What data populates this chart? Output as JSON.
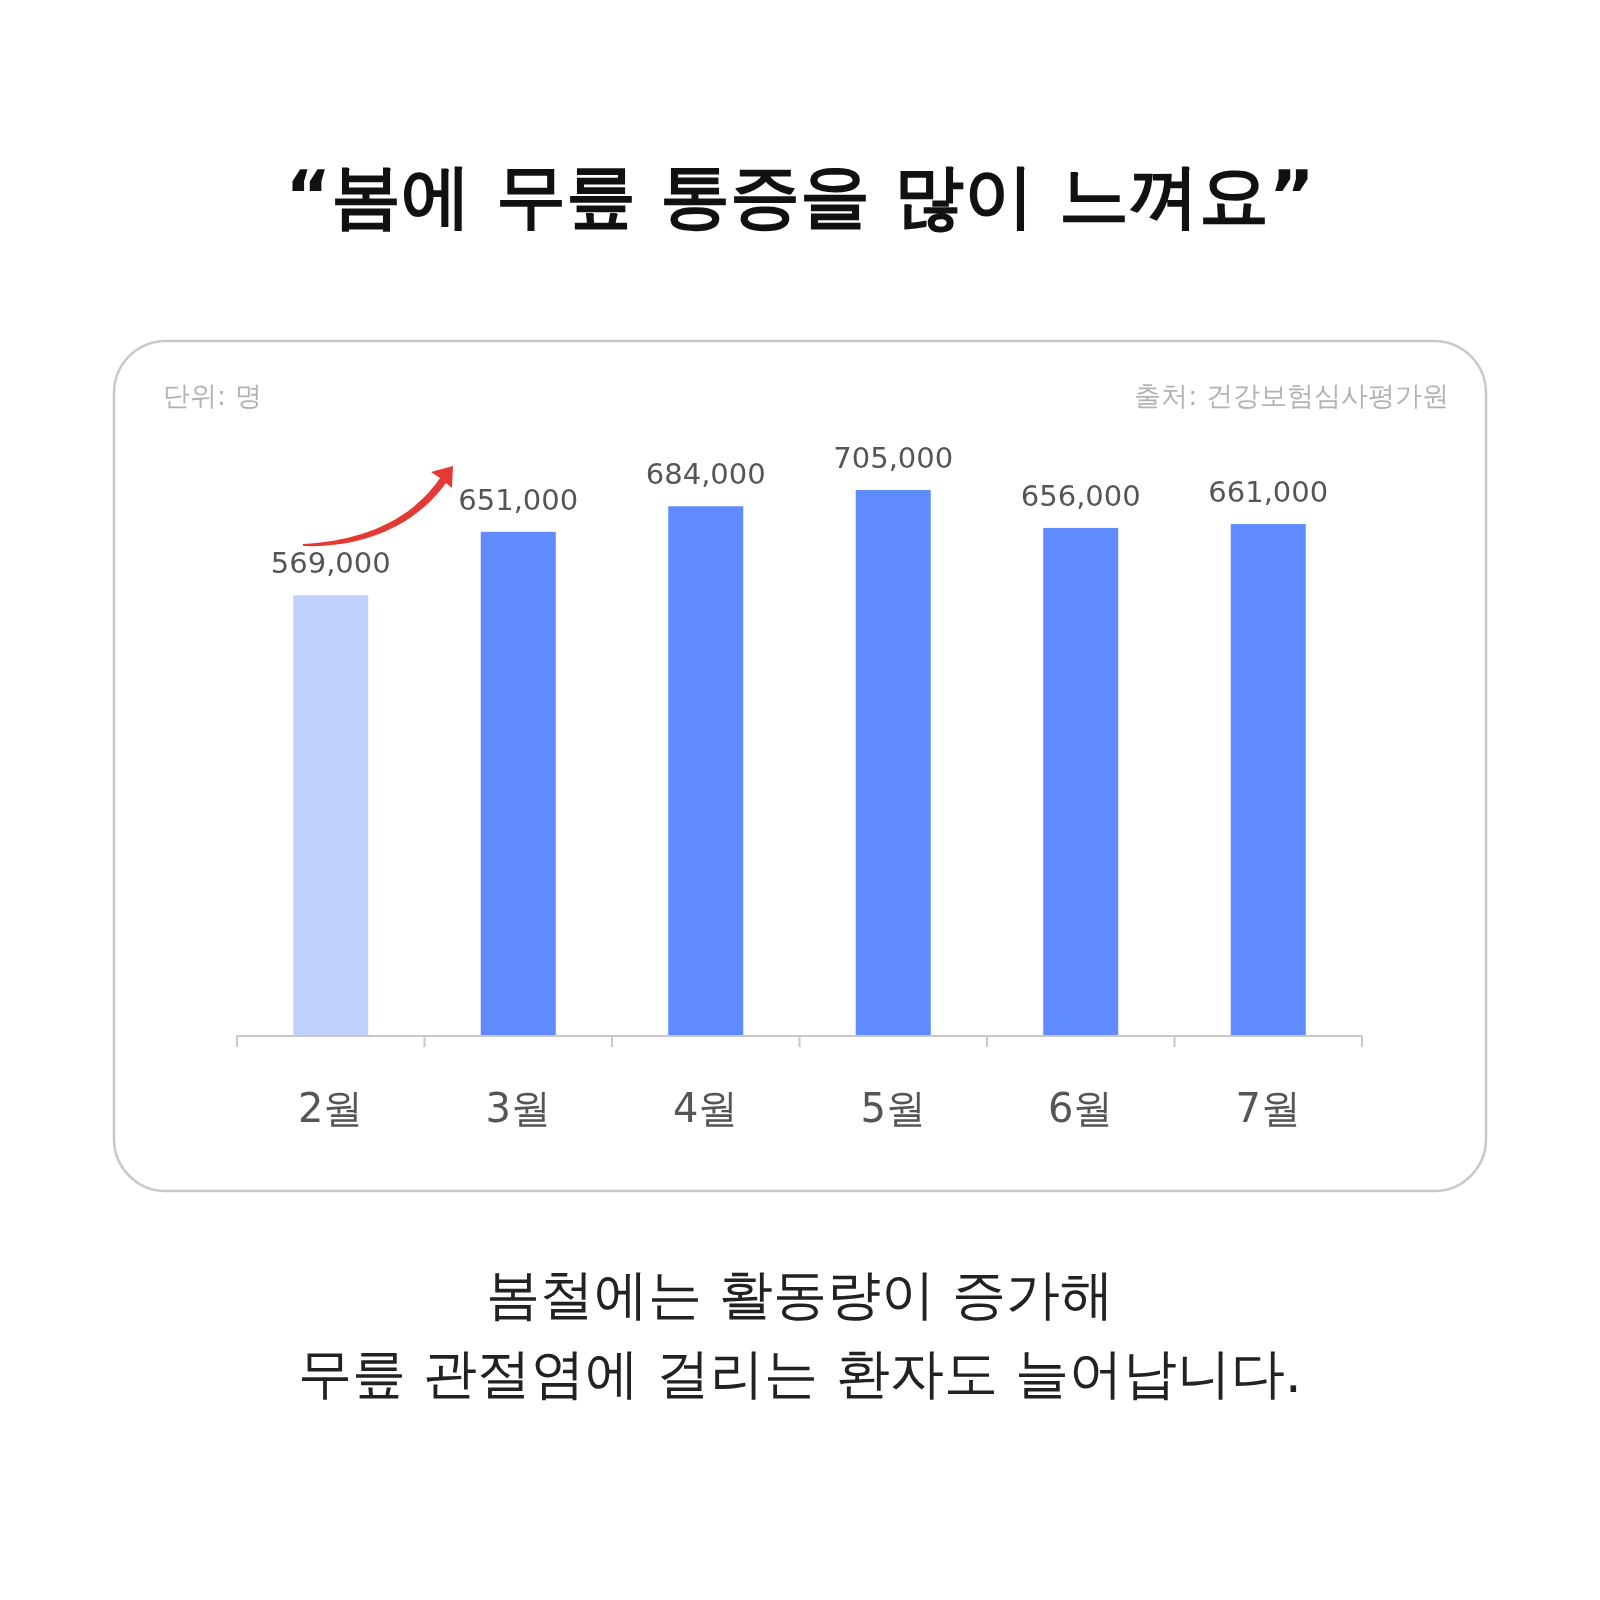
{
  "chart_data": {
    "type": "bar",
    "title": "“봄에 무릎 통증을 많이 느껴요”",
    "subtitle": "봄철에는 활동량이 증가해\n무릎 관절염에 걸리는 환자도 늘어납니다.",
    "annotations": [
      "단위: 명",
      "출처: 건강보험심사평가원"
    ],
    "categories": [
      "2월",
      "3월",
      "4월",
      "5월",
      "6월",
      "7월"
    ],
    "values": [
      569000,
      651000,
      684000,
      705000,
      656000,
      661000
    ],
    "value_labels": [
      "569,000",
      "651,000",
      "684,000",
      "705,000",
      "656,000",
      "661,000"
    ],
    "colors": [
      "#c0d1ff",
      "#5f8bff",
      "#5f8bff",
      "#5f8bff",
      "#5f8bff",
      "#5f8bff"
    ]
  }
}
